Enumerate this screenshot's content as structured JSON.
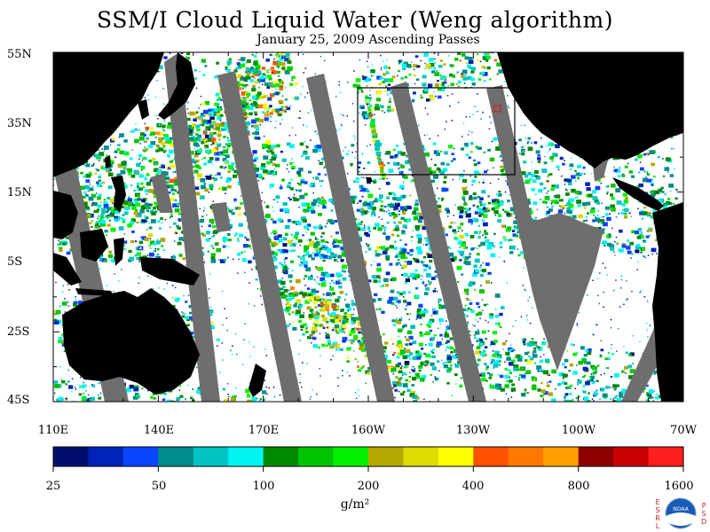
{
  "title": "SSM/I Cloud Liquid Water (Weng algorithm)",
  "subtitle": "January 25, 2009  Ascending Passes",
  "lat_labels": [
    "55N",
    "35N",
    "15N",
    "5S",
    "25S",
    "45S"
  ],
  "lon_labels": [
    "110E",
    "140E",
    "170E",
    "160W",
    "130W",
    "100W",
    "70W"
  ],
  "colorbar": {
    "tick_labels": [
      "25",
      "50",
      "100",
      "200",
      "400",
      "800",
      "1600"
    ],
    "unit": "g/m²",
    "colors": [
      "#000f6e",
      "#0024b8",
      "#0a44ff",
      "#008c8c",
      "#00c4c4",
      "#00f4f4",
      "#008a00",
      "#00c400",
      "#00f000",
      "#b4a800",
      "#dcdc00",
      "#ffff00",
      "#ff5000",
      "#ff7800",
      "#ffa000",
      "#8c0000",
      "#c80000",
      "#ff1e1e"
    ]
  },
  "colors": {
    "land": "#000000",
    "no_data_gap": "#6e6e6e",
    "ocean_clear": "#ffffff",
    "box": "#000000",
    "marker": "#ff0000"
  },
  "logo": {
    "left_letters": "ESRL",
    "right_letters": "PSD",
    "center_text": "NOAA"
  }
}
